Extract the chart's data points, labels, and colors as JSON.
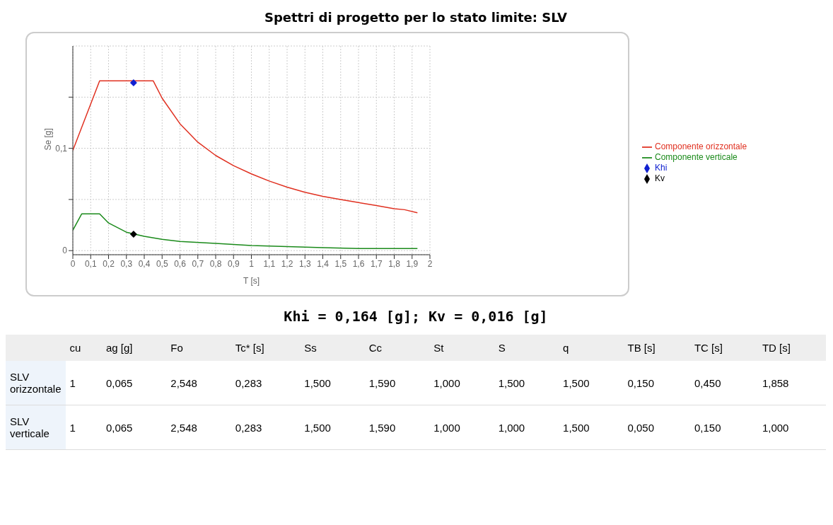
{
  "chart_data": {
    "type": "line",
    "title": "Spettri di progetto per lo stato limite: SLV",
    "xlabel": "T [s]",
    "ylabel": "Se [g]",
    "xlim": [
      0,
      2
    ],
    "xticks": [
      0,
      {
        "value": 0.1,
        "label": "0,1"
      },
      {
        "value": 0.2,
        "label": "0,2"
      },
      {
        "value": 0.3,
        "label": "0,3"
      },
      {
        "value": 0.4,
        "label": "0,4"
      },
      {
        "value": 0.5,
        "label": "0,5"
      },
      {
        "value": 0.6,
        "label": "0,6"
      },
      {
        "value": 0.7,
        "label": "0,7"
      },
      {
        "value": 0.8,
        "label": "0,8"
      },
      {
        "value": 0.9,
        "label": "0,9"
      },
      1,
      {
        "value": 1.1,
        "label": "1,1"
      },
      {
        "value": 1.2,
        "label": "1,2"
      },
      {
        "value": 1.3,
        "label": "1,3"
      },
      {
        "value": 1.4,
        "label": "1,4"
      },
      {
        "value": 1.5,
        "label": "1,5"
      },
      {
        "value": 1.6,
        "label": "1,6"
      },
      {
        "value": 1.7,
        "label": "1,7"
      },
      {
        "value": 1.8,
        "label": "1,8"
      },
      {
        "value": 1.9,
        "label": "1,9"
      },
      2
    ],
    "ylim": [
      -0.004,
      0.2
    ],
    "yticks": [
      0,
      {
        "value": 0.05,
        "label": null
      },
      {
        "value": 0.1,
        "label": "0,1"
      },
      {
        "value": 0.15,
        "label": null
      }
    ],
    "grid": true,
    "legend": "right",
    "marker": "none",
    "line_style": "solid",
    "series": [
      {
        "name": "Componente orizzontale",
        "color": "#e03020",
        "x": [
          0,
          0.15,
          0.45,
          0.5,
          0.6,
          0.7,
          0.8,
          0.9,
          1.0,
          1.1,
          1.2,
          1.3,
          1.4,
          1.5,
          1.6,
          1.7,
          1.8,
          1.858,
          1.93
        ],
        "values": [
          0.098,
          0.166,
          0.166,
          0.149,
          0.124,
          0.106,
          0.093,
          0.083,
          0.075,
          0.068,
          0.062,
          0.057,
          0.053,
          0.05,
          0.047,
          0.044,
          0.041,
          0.04,
          0.037
        ]
      },
      {
        "name": "Componente verticale",
        "color": "#1a8a1a",
        "x": [
          0,
          0.05,
          0.15,
          0.2,
          0.3,
          0.4,
          0.5,
          0.6,
          0.8,
          1.0,
          1.2,
          1.4,
          1.6,
          1.93
        ],
        "values": [
          0.02,
          0.036,
          0.036,
          0.027,
          0.018,
          0.014,
          0.011,
          0.009,
          0.007,
          0.005,
          0.004,
          0.003,
          0.002,
          0.002
        ]
      },
      {
        "name": "Khi",
        "type": "scatter",
        "marker": "diamond",
        "color": "#1020d0",
        "x": [
          0.34
        ],
        "values": [
          0.164
        ]
      },
      {
        "name": "Kv",
        "type": "scatter",
        "marker": "diamond",
        "color": "#000000",
        "x": [
          0.34
        ],
        "values": [
          0.016
        ]
      }
    ],
    "annotations": [
      "Khi = 0,164 [g]; Kv = 0,016 [g]",
      "cu",
      "ag [g]",
      "Fo",
      "Tc* [s]",
      "Ss",
      "Cc",
      "St",
      "S",
      "q",
      "TB [s]",
      "TC [s]",
      "TD [s]",
      "SLV orizzontale",
      "1",
      "0,065",
      "2,548",
      "0,283",
      "1,500",
      "1,590",
      "1,000",
      "1,500",
      "1,500",
      "0,150",
      "0,450",
      "1,858",
      "SLV verticale",
      "1",
      "0,065",
      "2,548",
      "0,283",
      "1,500",
      "1,590",
      "1,000",
      "1,000",
      "1,500",
      "0,050",
      "0,150",
      "1,000"
    ]
  }
}
